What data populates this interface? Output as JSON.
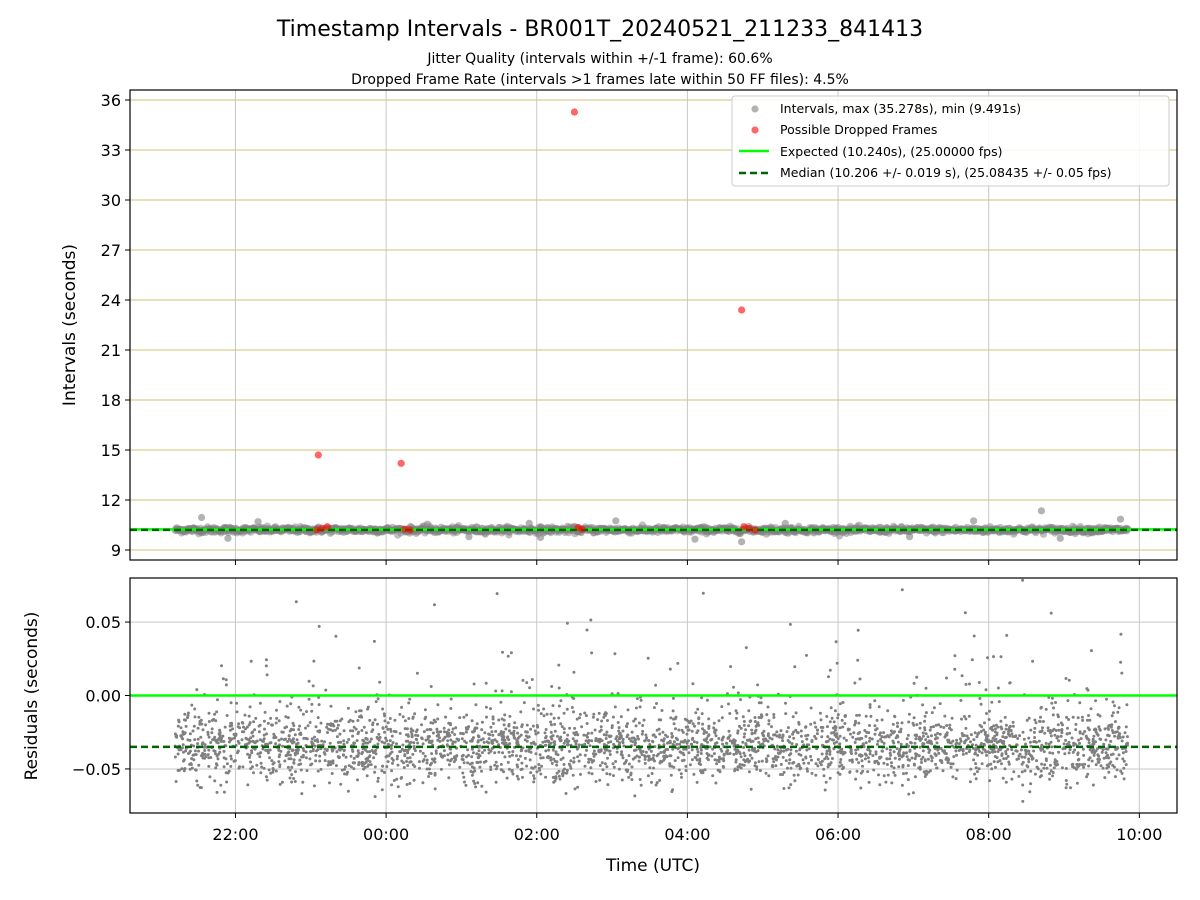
{
  "header": {
    "title": "Timestamp Intervals - BR001T_20240521_211233_841413",
    "subtitle_1": "Jitter Quality (intervals within +/-1 frame): 60.6%",
    "subtitle_2": "Dropped Frame Rate (intervals >1 frames late within 50 FF files): 4.5%"
  },
  "colors": {
    "intervals": "#808080",
    "dropped": "#ff0000",
    "expected": "#00ff00",
    "median": "#006400",
    "grid": "#c8c8c8",
    "hgrid_top": "#d6c07a"
  },
  "chart_data": [
    {
      "type": "scatter",
      "panel": "top",
      "ylabel": "Intervals (seconds)",
      "xlabel": "",
      "ylim": [
        8.4,
        36.6
      ],
      "xlim_hours": [
        20.6,
        34.5
      ],
      "yticks": [
        "9",
        "12",
        "15",
        "18",
        "21",
        "24",
        "27",
        "30",
        "33",
        "36"
      ],
      "ytick_values": [
        9,
        12,
        15,
        18,
        21,
        24,
        27,
        30,
        33,
        36
      ],
      "grid": true,
      "legend_position": "top-right",
      "legend": [
        "Intervals, max (35.278s), min (9.491s)",
        "Possible Dropped Frames",
        "Expected (10.240s), (25.00000 fps)",
        "Median (10.206 +/- 0.019 s), (25.08435 +/- 0.05 fps)"
      ],
      "expected_value": 10.24,
      "median_value": 10.206,
      "intervals_range_hours": [
        21.2,
        33.85
      ],
      "intervals_typical": 10.206,
      "intervals_max": 35.278,
      "intervals_min": 9.491,
      "intervals_outliers": [
        {
          "x": 21.55,
          "y": 10.95
        },
        {
          "x": 22.3,
          "y": 10.7
        },
        {
          "x": 21.9,
          "y": 9.7
        },
        {
          "x": 24.55,
          "y": 10.55
        },
        {
          "x": 25.1,
          "y": 9.8
        },
        {
          "x": 25.9,
          "y": 10.6
        },
        {
          "x": 26.05,
          "y": 9.75
        },
        {
          "x": 27.05,
          "y": 10.75
        },
        {
          "x": 28.1,
          "y": 9.65
        },
        {
          "x": 28.72,
          "y": 9.491
        },
        {
          "x": 29.3,
          "y": 10.6
        },
        {
          "x": 30.95,
          "y": 9.8
        },
        {
          "x": 31.8,
          "y": 10.75
        },
        {
          "x": 32.7,
          "y": 11.35
        },
        {
          "x": 32.95,
          "y": 9.7
        },
        {
          "x": 33.75,
          "y": 10.85
        }
      ],
      "dropped_frames": [
        {
          "x": 23.1,
          "y": 14.7
        },
        {
          "x": 24.2,
          "y": 14.2
        },
        {
          "x": 26.5,
          "y": 35.278
        },
        {
          "x": 28.72,
          "y": 23.4
        },
        {
          "x": 23.15,
          "y": 10.3
        },
        {
          "x": 23.22,
          "y": 10.4
        },
        {
          "x": 23.08,
          "y": 10.2
        },
        {
          "x": 24.25,
          "y": 10.25
        },
        {
          "x": 24.32,
          "y": 10.2
        },
        {
          "x": 26.55,
          "y": 10.35
        },
        {
          "x": 26.6,
          "y": 10.25
        },
        {
          "x": 28.75,
          "y": 10.4
        },
        {
          "x": 28.82,
          "y": 10.3
        },
        {
          "x": 28.9,
          "y": 10.2
        }
      ]
    },
    {
      "type": "scatter",
      "panel": "bottom",
      "ylabel": "Residuals (seconds)",
      "xlabel": "Time (UTC)",
      "ylim": [
        -0.08,
        0.08
      ],
      "xlim_hours": [
        20.6,
        34.5
      ],
      "yticks": [
        "−0.05",
        "0.00",
        "0.05"
      ],
      "ytick_values": [
        -0.05,
        0.0,
        0.05
      ],
      "xticks": [
        "22:00",
        "00:00",
        "02:00",
        "04:00",
        "06:00",
        "08:00",
        "10:00"
      ],
      "xtick_hours": [
        22,
        24,
        26,
        28,
        30,
        32,
        34
      ],
      "grid": true,
      "expected_residual": 0.0,
      "median_residual": -0.035,
      "residual_center": -0.035,
      "residual_spread": 0.012,
      "residual_range_hours": [
        21.2,
        33.85
      ]
    }
  ]
}
